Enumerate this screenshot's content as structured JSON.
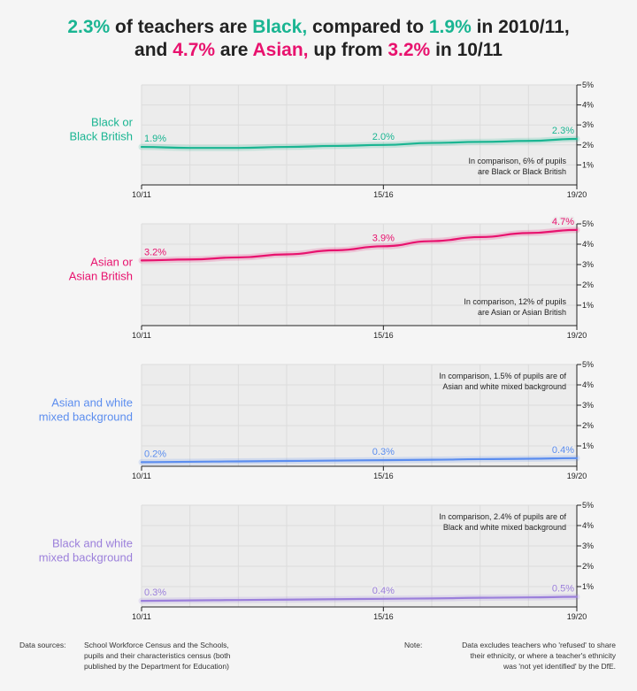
{
  "headline": {
    "line1": [
      {
        "text": "2.3%",
        "color": "#1ab592"
      },
      {
        "text": " of teachers are ",
        "color": "#222222"
      },
      {
        "text": "Black,",
        "color": "#1ab592"
      },
      {
        "text": " compared to ",
        "color": "#222222"
      },
      {
        "text": "1.9%",
        "color": "#1ab592"
      },
      {
        "text": " in 2010/11,",
        "color": "#222222"
      }
    ],
    "line2": [
      {
        "text": "and ",
        "color": "#222222"
      },
      {
        "text": "4.7%",
        "color": "#e8126e"
      },
      {
        "text": " are ",
        "color": "#222222"
      },
      {
        "text": "Asian,",
        "color": "#e8126e"
      },
      {
        "text": " up from ",
        "color": "#222222"
      },
      {
        "text": "3.2%",
        "color": "#e8126e"
      },
      {
        "text": " in 10/11",
        "color": "#222222"
      }
    ]
  },
  "chart_data": [
    {
      "type": "line",
      "series_label": [
        "Black or",
        "Black British"
      ],
      "color": "#1ab592",
      "x": [
        "10/11",
        "11/12",
        "12/13",
        "13/14",
        "14/15",
        "15/16",
        "16/17",
        "17/18",
        "18/19",
        "19/20"
      ],
      "values": [
        1.9,
        1.85,
        1.85,
        1.9,
        1.95,
        2.0,
        2.1,
        2.15,
        2.2,
        2.3
      ],
      "data_labels": [
        {
          "x": "10/11",
          "text": "1.9%"
        },
        {
          "x": "15/16",
          "text": "2.0%"
        },
        {
          "x": "19/20",
          "text": "2.3%"
        }
      ],
      "xticks": [
        "10/11",
        "15/16",
        "19/20"
      ],
      "yticks": [
        "1%",
        "2%",
        "3%",
        "4%",
        "5%"
      ],
      "ylim": [
        0,
        5
      ],
      "note": [
        "In comparison, 6% of pupils",
        "are Black or Black British"
      ]
    },
    {
      "type": "line",
      "series_label": [
        "Asian or",
        "Asian British"
      ],
      "color": "#e8126e",
      "x": [
        "10/11",
        "11/12",
        "12/13",
        "13/14",
        "14/15",
        "15/16",
        "16/17",
        "17/18",
        "18/19",
        "19/20"
      ],
      "values": [
        3.2,
        3.25,
        3.35,
        3.5,
        3.7,
        3.9,
        4.15,
        4.35,
        4.55,
        4.7
      ],
      "data_labels": [
        {
          "x": "10/11",
          "text": "3.2%"
        },
        {
          "x": "15/16",
          "text": "3.9%"
        },
        {
          "x": "19/20",
          "text": "4.7%"
        }
      ],
      "xticks": [
        "10/11",
        "15/16",
        "19/20"
      ],
      "yticks": [
        "1%",
        "2%",
        "3%",
        "4%",
        "5%"
      ],
      "ylim": [
        0,
        5
      ],
      "note": [
        "In comparison, 12% of pupils",
        "are Asian or Asian British"
      ]
    },
    {
      "type": "line",
      "series_label": [
        "Asian and white",
        "mixed background"
      ],
      "color": "#5b8def",
      "x": [
        "10/11",
        "11/12",
        "12/13",
        "13/14",
        "14/15",
        "15/16",
        "16/17",
        "17/18",
        "18/19",
        "19/20"
      ],
      "values": [
        0.2,
        0.22,
        0.24,
        0.26,
        0.28,
        0.3,
        0.32,
        0.35,
        0.37,
        0.4
      ],
      "data_labels": [
        {
          "x": "10/11",
          "text": "0.2%"
        },
        {
          "x": "15/16",
          "text": "0.3%"
        },
        {
          "x": "19/20",
          "text": "0.4%"
        }
      ],
      "xticks": [
        "10/11",
        "15/16",
        "19/20"
      ],
      "yticks": [
        "1%",
        "2%",
        "3%",
        "4%",
        "5%"
      ],
      "ylim": [
        0,
        5
      ],
      "note": [
        "In comparison, 1.5% of pupils are of",
        "Asian and white mixed background"
      ]
    },
    {
      "type": "line",
      "series_label": [
        "Black and white",
        "mixed background"
      ],
      "color": "#9b7fdb",
      "x": [
        "10/11",
        "11/12",
        "12/13",
        "13/14",
        "14/15",
        "15/16",
        "16/17",
        "17/18",
        "18/19",
        "19/20"
      ],
      "values": [
        0.3,
        0.32,
        0.34,
        0.36,
        0.38,
        0.4,
        0.42,
        0.45,
        0.47,
        0.5
      ],
      "data_labels": [
        {
          "x": "10/11",
          "text": "0.3%"
        },
        {
          "x": "15/16",
          "text": "0.4%"
        },
        {
          "x": "19/20",
          "text": "0.5%"
        }
      ],
      "xticks": [
        "10/11",
        "15/16",
        "19/20"
      ],
      "yticks": [
        "1%",
        "2%",
        "3%",
        "4%",
        "5%"
      ],
      "ylim": [
        0,
        5
      ],
      "note": [
        "In comparison, 2.4% of pupils are of",
        "Black and white mixed background"
      ]
    }
  ],
  "footer": {
    "sources_label": "Data sources:",
    "sources_text": [
      "School Workforce Census and the Schools,",
      "pupils and their characteristics census (both",
      "published by the Department for Education)"
    ],
    "note_label": "Note:",
    "note_text": [
      "Data excludes teachers who 'refused' to share",
      "their ethnicity, or where a teacher's ethnicity",
      "was 'not yet identified' by the DfE."
    ]
  }
}
